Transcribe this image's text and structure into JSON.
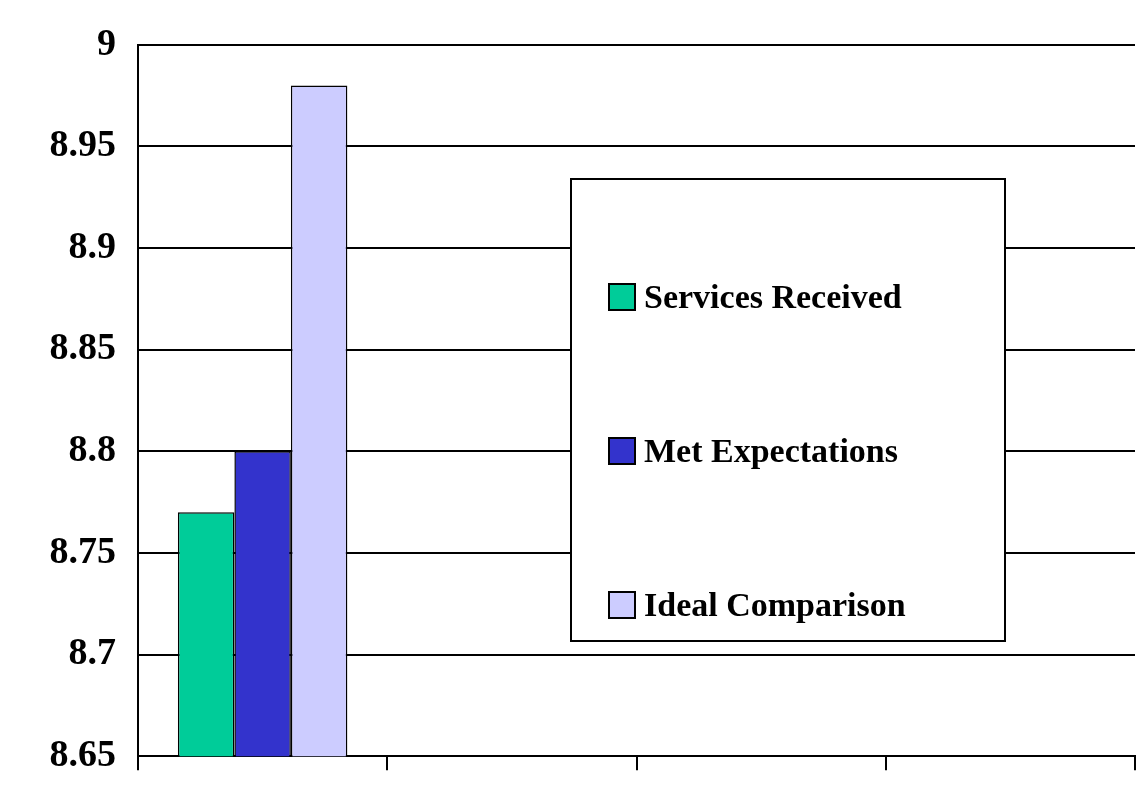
{
  "chart_data": {
    "type": "bar",
    "categories": [
      null,
      null,
      null,
      null
    ],
    "series": [
      {
        "name": "Services Received",
        "color": "#00cc99",
        "values": [
          8.77,
          null,
          null,
          null
        ]
      },
      {
        "name": "Met Expectations",
        "color": "#3333cc",
        "values": [
          8.8,
          null,
          null,
          null
        ]
      },
      {
        "name": "Ideal Comparison",
        "color": "#ccccff",
        "values": [
          8.98,
          null,
          null,
          null
        ]
      }
    ],
    "ylim": [
      8.65,
      9
    ],
    "yticks": [
      8.65,
      8.7,
      8.75,
      8.8,
      8.85,
      8.9,
      8.95,
      9
    ],
    "grid": "y",
    "legend": "right",
    "tick_labels": "y"
  }
}
